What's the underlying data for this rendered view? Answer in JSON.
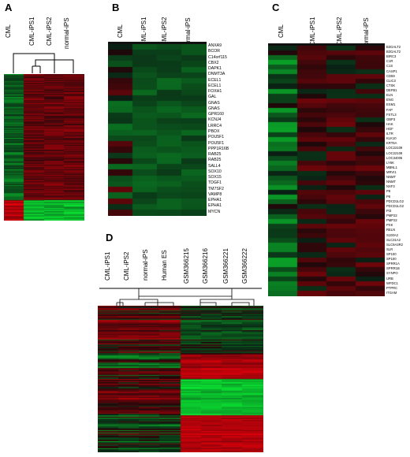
{
  "panels": [
    {
      "letter": "A",
      "columns": [
        "CML",
        "CML-iPS1",
        "CML-iPS2",
        "normal-iPS"
      ],
      "colors": {
        "low": "#1fdc3a",
        "mid": "#000000",
        "high": "#e8141c"
      }
    },
    {
      "letter": "B",
      "columns": [
        "CML",
        "CML-iPS1",
        "CML-iPS2",
        "normal-iPS"
      ],
      "genes": [
        "ANXA9",
        "BCOR",
        "C14orf115",
        "CBX2",
        "DAPK1",
        "DNMT3A",
        "ECEL1",
        "ECEL1",
        "FOXH1",
        "GAL",
        "GNAS",
        "GNAS",
        "GPR160",
        "KCNJ4",
        "LRRC4",
        "PBOX",
        "POU5F1",
        "POU5F1",
        "PPP1R16B",
        "RAB25",
        "RAB25",
        "SALL4",
        "SOX10",
        "SOX15",
        "TDGF1",
        "TM7SF2",
        "VAMP8",
        "EPHA1",
        "EPHA1",
        "MYCN"
      ]
    },
    {
      "letter": "C",
      "columns": [
        "CML",
        "CML-iPS1",
        "CML-iPS2",
        "normal-iPS"
      ],
      "genes": [
        "B3GALT2",
        "B3GALT2",
        "BIRC3",
        "C1R",
        "C1S",
        "CASP1",
        "CD59",
        "CLIC3",
        "CTSK",
        "DEFB1",
        "ELN",
        "ENG",
        "ESM1",
        "FAP",
        "FSTL3",
        "GBP3",
        "HAK",
        "HGF",
        "ILTR",
        "KLK10",
        "KRT6A",
        "LOC22109",
        "LOC22109",
        "LOC34006",
        "LY6K",
        "MBNL1",
        "MRVI1",
        "NNMT",
        "NNMT",
        "NXF3",
        "P8",
        "P8",
        "PDCD1LG2",
        "PDCD1LG2",
        "PI3",
        "PMP22",
        "PMP22",
        "PXK",
        "RELN",
        "S100A2",
        "SLC31A2",
        "SLC9A3R2",
        "SLR",
        "SP100",
        "SP100",
        "SPRR1A",
        "SPRR1B",
        "SYNPO",
        "URB",
        "WFDC1",
        "PTPRC",
        "ITGAM"
      ]
    },
    {
      "letter": "D",
      "columns": [
        "CML-iPS1",
        "CML-iPS2",
        "normal-iPS",
        "Human ES",
        "GSM366215",
        "GSM366216",
        "GSM366221",
        "GSM366222"
      ]
    }
  ]
}
